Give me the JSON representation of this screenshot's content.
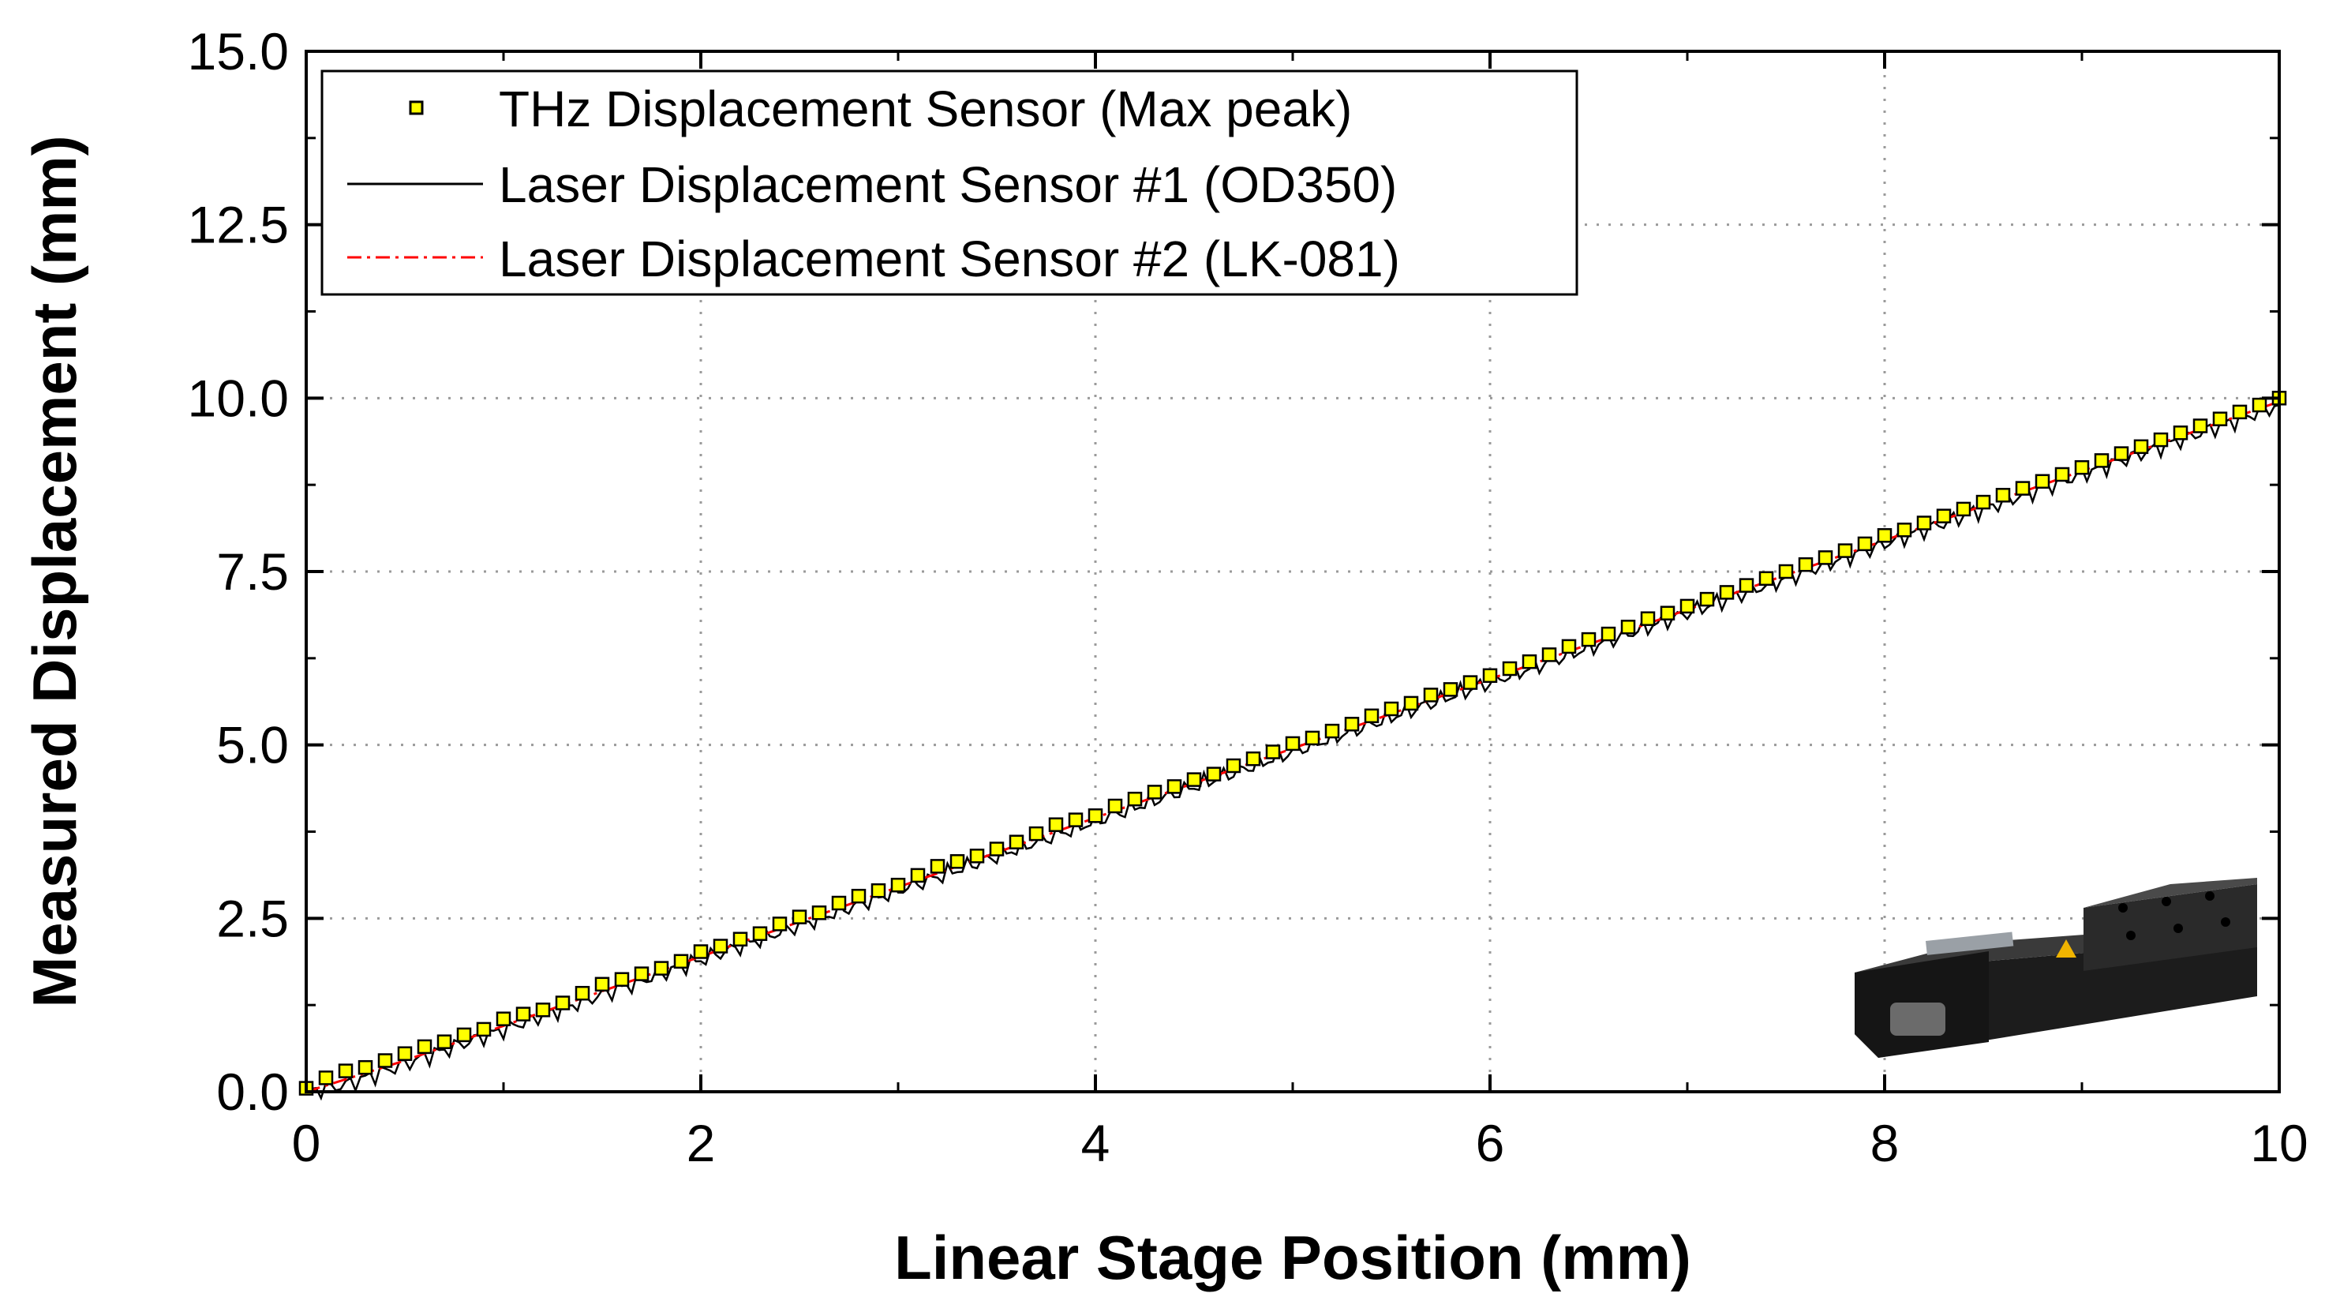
{
  "chart_data": {
    "type": "line",
    "title": "",
    "xlabel": "Linear Stage Position (mm)",
    "ylabel": "Measured Displacement (mm)",
    "xlim": [
      0,
      10
    ],
    "ylim": [
      0,
      15
    ],
    "x_ticks": [
      0,
      2,
      4,
      6,
      8,
      10
    ],
    "x_tick_labels": [
      "0",
      "2",
      "4",
      "6",
      "8",
      "10"
    ],
    "y_ticks": [
      0,
      2.5,
      5,
      7.5,
      10,
      12.5,
      15
    ],
    "y_tick_labels": [
      "0.0",
      "2.5",
      "5.0",
      "7.5",
      "10.0",
      "12.5",
      "15.0"
    ],
    "grid": true,
    "legend_position": "top-left",
    "inset_image": "linear-stage-photo",
    "series": [
      {
        "name": "THz Displacement Sensor (Max peak)",
        "style": "square-markers",
        "color": "#ffff00",
        "edge_color": "#000000",
        "x": [
          0,
          0.1,
          0.2,
          0.3,
          0.4,
          0.5,
          0.6,
          0.7,
          0.8,
          0.9,
          1.0,
          1.1,
          1.2,
          1.3,
          1.4,
          1.5,
          1.6,
          1.7,
          1.8,
          1.9,
          2.0,
          2.1,
          2.2,
          2.3,
          2.4,
          2.5,
          2.6,
          2.7,
          2.8,
          2.9,
          3.0,
          3.1,
          3.2,
          3.3,
          3.4,
          3.5,
          3.6,
          3.7,
          3.8,
          3.9,
          4.0,
          4.1,
          4.2,
          4.3,
          4.4,
          4.5,
          4.6,
          4.7,
          4.8,
          4.9,
          5.0,
          5.1,
          5.2,
          5.3,
          5.4,
          5.5,
          5.6,
          5.7,
          5.8,
          5.9,
          6.0,
          6.1,
          6.2,
          6.3,
          6.4,
          6.5,
          6.6,
          6.7,
          6.8,
          6.9,
          7.0,
          7.1,
          7.2,
          7.3,
          7.4,
          7.5,
          7.6,
          7.7,
          7.8,
          7.9,
          8.0,
          8.1,
          8.2,
          8.3,
          8.4,
          8.5,
          8.6,
          8.7,
          8.8,
          8.9,
          9.0,
          9.1,
          9.2,
          9.3,
          9.4,
          9.5,
          9.6,
          9.7,
          9.8,
          9.9,
          10.0
        ],
        "y": [
          0.05,
          0.2,
          0.3,
          0.35,
          0.45,
          0.55,
          0.65,
          0.72,
          0.82,
          0.9,
          1.05,
          1.12,
          1.18,
          1.28,
          1.42,
          1.55,
          1.62,
          1.7,
          1.78,
          1.88,
          2.02,
          2.1,
          2.2,
          2.28,
          2.42,
          2.52,
          2.58,
          2.72,
          2.82,
          2.9,
          2.98,
          3.12,
          3.25,
          3.32,
          3.4,
          3.5,
          3.6,
          3.72,
          3.85,
          3.92,
          3.98,
          4.12,
          4.22,
          4.32,
          4.4,
          4.5,
          4.58,
          4.7,
          4.8,
          4.9,
          5.02,
          5.1,
          5.2,
          5.3,
          5.42,
          5.52,
          5.6,
          5.72,
          5.8,
          5.9,
          6.0,
          6.1,
          6.2,
          6.3,
          6.42,
          6.52,
          6.6,
          6.7,
          6.82,
          6.9,
          7.0,
          7.1,
          7.2,
          7.3,
          7.4,
          7.5,
          7.6,
          7.7,
          7.8,
          7.9,
          8.02,
          8.1,
          8.2,
          8.3,
          8.4,
          8.5,
          8.6,
          8.7,
          8.8,
          8.9,
          9.0,
          9.1,
          9.2,
          9.3,
          9.4,
          9.5,
          9.6,
          9.7,
          9.8,
          9.9,
          10.0
        ]
      },
      {
        "name": "Laser Displacement Sensor #1 (OD350)",
        "style": "solid-line",
        "color": "#000000",
        "x": [
          0,
          0.2,
          0.4,
          0.6,
          0.8,
          1.0,
          1.2,
          1.4,
          1.6,
          1.8,
          2.0,
          2.2,
          2.4,
          2.6,
          2.8,
          3.0,
          3.2,
          3.4,
          3.6,
          3.8,
          4.0,
          4.2,
          4.4,
          4.6,
          4.8,
          5.0,
          5.2,
          5.4,
          5.6,
          5.8,
          6.0,
          6.2,
          6.4,
          6.6,
          6.8,
          7.0,
          7.2,
          7.4,
          7.6,
          7.8,
          8.0,
          8.2,
          8.4,
          8.6,
          8.8,
          9.0,
          9.2,
          9.4,
          9.6,
          9.8,
          10.0
        ],
        "y": [
          0,
          0.1,
          0.3,
          0.5,
          0.7,
          0.9,
          1.1,
          1.3,
          1.5,
          1.7,
          1.9,
          2.1,
          2.3,
          2.5,
          2.7,
          2.9,
          3.1,
          3.3,
          3.5,
          3.7,
          3.9,
          4.1,
          4.3,
          4.5,
          4.7,
          4.9,
          5.1,
          5.3,
          5.5,
          5.7,
          5.9,
          6.1,
          6.3,
          6.5,
          6.7,
          6.9,
          7.1,
          7.3,
          7.5,
          7.7,
          7.9,
          8.1,
          8.3,
          8.5,
          8.7,
          8.9,
          9.1,
          9.3,
          9.5,
          9.7,
          9.9
        ]
      },
      {
        "name": "Laser Displacement Sensor #2 (LK-081)",
        "style": "dash-dot-line",
        "color": "#ff0000",
        "x": [
          0,
          0.5,
          1.0,
          1.5,
          2.0,
          2.5,
          3.0,
          3.5,
          4.0,
          4.5,
          5.0,
          5.5,
          6.0,
          6.5,
          7.0,
          7.5,
          8.0,
          8.5,
          9.0,
          9.5,
          10.0
        ],
        "y": [
          0,
          0.45,
          0.95,
          1.45,
          1.95,
          2.45,
          2.95,
          3.45,
          3.95,
          4.45,
          4.95,
          5.45,
          5.95,
          6.45,
          6.95,
          7.45,
          7.95,
          8.45,
          8.95,
          9.45,
          9.95
        ]
      }
    ]
  }
}
